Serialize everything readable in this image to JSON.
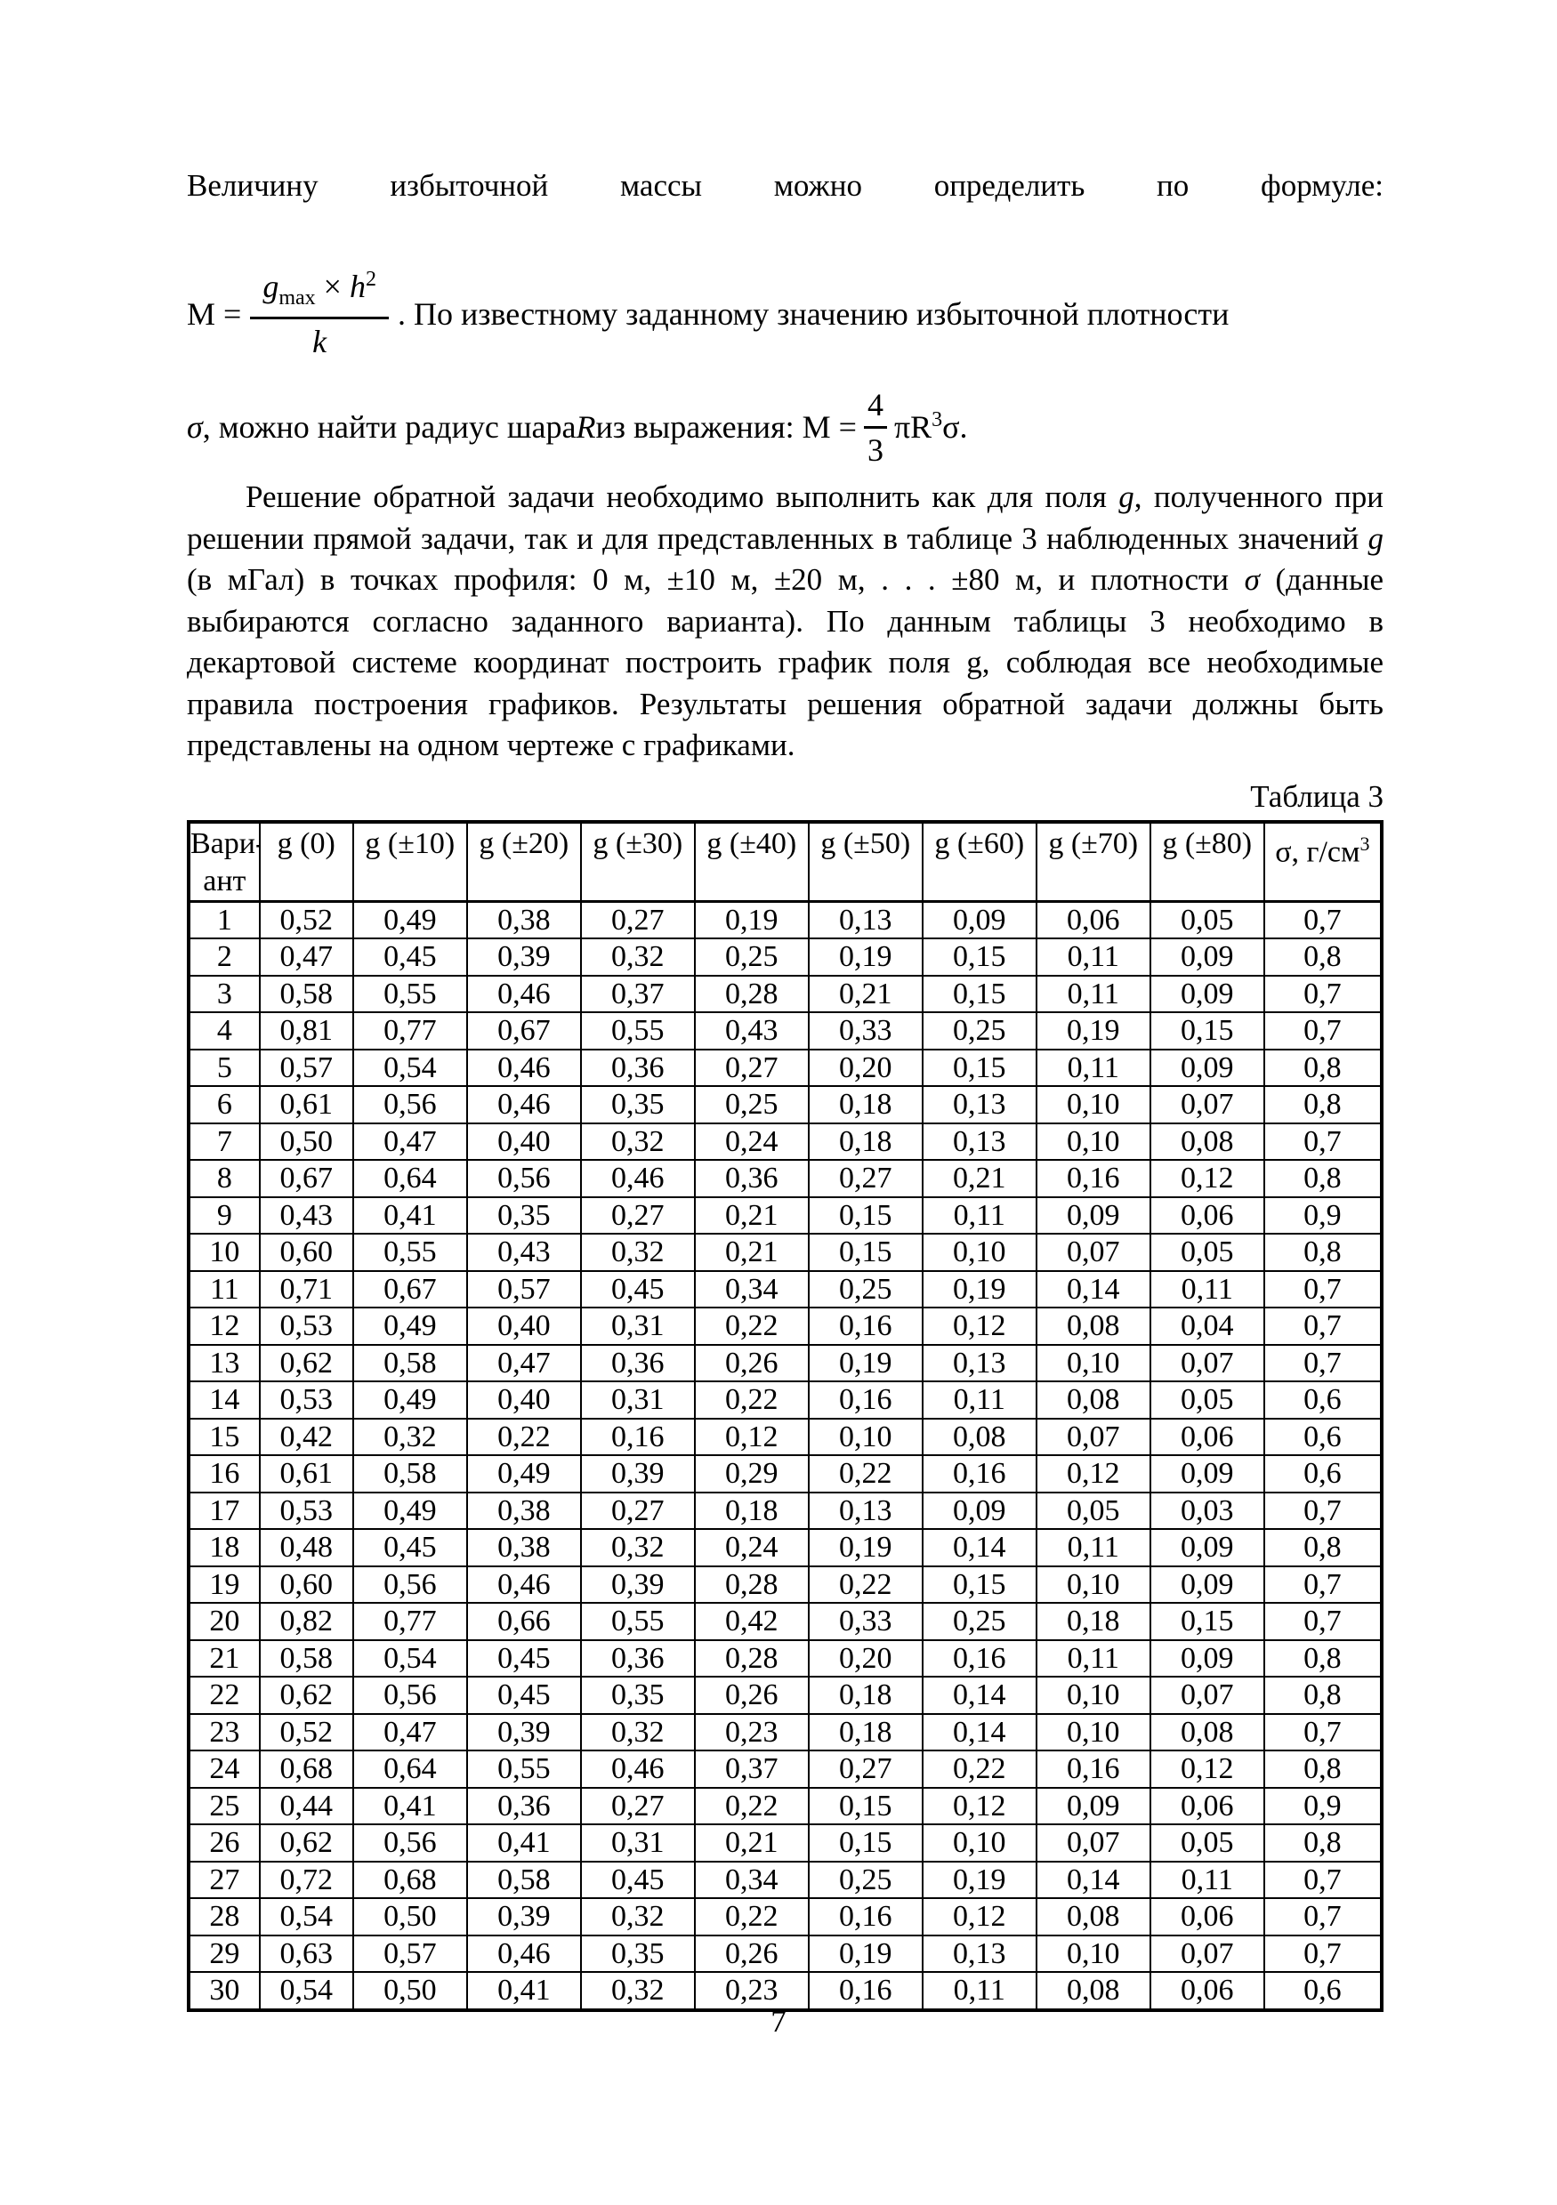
{
  "page": {
    "number": "7"
  },
  "intro": {
    "line1": "Величину избыточной массы можно определить по формуле:",
    "formula_mass": {
      "lhs": "М =",
      "num_g": "g",
      "num_sub": "max",
      "num_times": " × ",
      "num_h": "h",
      "num_exp": "2",
      "den": "k",
      "tail": ". По известному заданному значению избыточной плотности"
    },
    "formula_radius": {
      "sigma": "σ",
      "mid1": ", можно найти радиус шара ",
      "r": "R",
      "mid2": " из выражения: М = ",
      "frac_num": "4",
      "frac_den": "3",
      "pi_r": "πR",
      "exp": "3",
      "tail": "σ."
    }
  },
  "task": {
    "segments": [
      {
        "t": "Решение обратной задачи необходимо выполнить как для поля "
      },
      {
        "t": "g",
        "i": true
      },
      {
        "t": ", полученного при решении прямой задачи, так и для представленных в таблице 3 наблюденных значений "
      },
      {
        "t": "g",
        "i": true
      },
      {
        "t": "  (в мГал) в точках профиля: 0 м, ±10 м, ±20 м, . . . ±80 м,  и плотности "
      },
      {
        "t": "σ",
        "i": true
      },
      {
        "t": " (данные выбираются согласно заданного варианта). По данным таблицы 3 необходимо в декартовой системе координат построить график поля g, соблюдая все необходимые правила построения графиков. Результаты решения обратной задачи должны быть представлены на одном чертеже с графиками."
      }
    ]
  },
  "table": {
    "caption": "Таблица 3",
    "col_headers": [
      {
        "text": "Вари-",
        "text2": "ант"
      },
      {
        "text": "g (0)"
      },
      {
        "text": "g (±10)"
      },
      {
        "text": "g (±20)"
      },
      {
        "text": "g (±30)"
      },
      {
        "text": "g (±40)"
      },
      {
        "text": "g (±50)"
      },
      {
        "text": "g (±60)"
      },
      {
        "text": "g (±70)"
      },
      {
        "text": "g (±80)"
      },
      {
        "text": "σ, г/см",
        "sup": "3"
      }
    ],
    "rows": [
      [
        "1",
        "0,52",
        "0,49",
        "0,38",
        "0,27",
        "0,19",
        "0,13",
        "0,09",
        "0,06",
        "0,05",
        "0,7"
      ],
      [
        "2",
        "0,47",
        "0,45",
        "0,39",
        "0,32",
        "0,25",
        "0,19",
        "0,15",
        "0,11",
        "0,09",
        "0,8"
      ],
      [
        "3",
        "0,58",
        "0,55",
        "0,46",
        "0,37",
        "0,28",
        "0,21",
        "0,15",
        "0,11",
        "0,09",
        "0,7"
      ],
      [
        "4",
        "0,81",
        "0,77",
        "0,67",
        "0,55",
        "0,43",
        "0,33",
        "0,25",
        "0,19",
        "0,15",
        "0,7"
      ],
      [
        "5",
        "0,57",
        "0,54",
        "0,46",
        "0,36",
        "0,27",
        "0,20",
        "0,15",
        "0,11",
        "0,09",
        "0,8"
      ],
      [
        "6",
        "0,61",
        "0,56",
        "0,46",
        "0,35",
        "0,25",
        "0,18",
        "0,13",
        "0,10",
        "0,07",
        "0,8"
      ],
      [
        "7",
        "0,50",
        "0,47",
        "0,40",
        "0,32",
        "0,24",
        "0,18",
        "0,13",
        "0,10",
        "0,08",
        "0,7"
      ],
      [
        "8",
        "0,67",
        "0,64",
        "0,56",
        "0,46",
        "0,36",
        "0,27",
        "0,21",
        "0,16",
        "0,12",
        "0,8"
      ],
      [
        "9",
        "0,43",
        "0,41",
        "0,35",
        "0,27",
        "0,21",
        "0,15",
        "0,11",
        "0,09",
        "0,06",
        "0,9"
      ],
      [
        "10",
        "0,60",
        "0,55",
        "0,43",
        "0,32",
        "0,21",
        "0,15",
        "0,10",
        "0,07",
        "0,05",
        "0,8"
      ],
      [
        "11",
        "0,71",
        "0,67",
        "0,57",
        "0,45",
        "0,34",
        "0,25",
        "0,19",
        "0,14",
        "0,11",
        "0,7"
      ],
      [
        "12",
        "0,53",
        "0,49",
        "0,40",
        "0,31",
        "0,22",
        "0,16",
        "0,12",
        "0,08",
        "0,04",
        "0,7"
      ],
      [
        "13",
        "0,62",
        "0,58",
        "0,47",
        "0,36",
        "0,26",
        "0,19",
        "0,13",
        "0,10",
        "0,07",
        "0,7"
      ],
      [
        "14",
        "0,53",
        "0,49",
        "0,40",
        "0,31",
        "0,22",
        "0,16",
        "0,11",
        "0,08",
        "0,05",
        "0,6"
      ],
      [
        "15",
        "0,42",
        "0,32",
        "0,22",
        "0,16",
        "0,12",
        "0,10",
        "0,08",
        "0,07",
        "0,06",
        "0,6"
      ],
      [
        "16",
        "0,61",
        "0,58",
        "0,49",
        "0,39",
        "0,29",
        "0,22",
        "0,16",
        "0,12",
        "0,09",
        "0,6"
      ],
      [
        "17",
        "0,53",
        "0,49",
        "0,38",
        "0,27",
        "0,18",
        "0,13",
        "0,09",
        "0,05",
        "0,03",
        "0,7"
      ],
      [
        "18",
        "0,48",
        "0,45",
        "0,38",
        "0,32",
        "0,24",
        "0,19",
        "0,14",
        "0,11",
        "0,09",
        "0,8"
      ],
      [
        "19",
        "0,60",
        "0,56",
        "0,46",
        "0,39",
        "0,28",
        "0,22",
        "0,15",
        "0,10",
        "0,09",
        "0,7"
      ],
      [
        "20",
        "0,82",
        "0,77",
        "0,66",
        "0,55",
        "0,42",
        "0,33",
        "0,25",
        "0,18",
        "0,15",
        "0,7"
      ],
      [
        "21",
        "0,58",
        "0,54",
        "0,45",
        "0,36",
        "0,28",
        "0,20",
        "0,16",
        "0,11",
        "0,09",
        "0,8"
      ],
      [
        "22",
        "0,62",
        "0,56",
        "0,45",
        "0,35",
        "0,26",
        "0,18",
        "0,14",
        "0,10",
        "0,07",
        "0,8"
      ],
      [
        "23",
        "0,52",
        "0,47",
        "0,39",
        "0,32",
        "0,23",
        "0,18",
        "0,14",
        "0,10",
        "0,08",
        "0,7"
      ],
      [
        "24",
        "0,68",
        "0,64",
        "0,55",
        "0,46",
        "0,37",
        "0,27",
        "0,22",
        "0,16",
        "0,12",
        "0,8"
      ],
      [
        "25",
        "0,44",
        "0,41",
        "0,36",
        "0,27",
        "0,22",
        "0,15",
        "0,12",
        "0,09",
        "0,06",
        "0,9"
      ],
      [
        "26",
        "0,62",
        "0,56",
        "0,41",
        "0,31",
        "0,21",
        "0,15",
        "0,10",
        "0,07",
        "0,05",
        "0,8"
      ],
      [
        "27",
        "0,72",
        "0,68",
        "0,58",
        "0,45",
        "0,34",
        "0,25",
        "0,19",
        "0,14",
        "0,11",
        "0,7"
      ],
      [
        "28",
        "0,54",
        "0,50",
        "0,39",
        "0,32",
        "0,22",
        "0,16",
        "0,12",
        "0,08",
        "0,06",
        "0,7"
      ],
      [
        "29",
        "0,63",
        "0,57",
        "0,46",
        "0,35",
        "0,26",
        "0,19",
        "0,13",
        "0,10",
        "0,07",
        "0,7"
      ],
      [
        "30",
        "0,54",
        "0,50",
        "0,41",
        "0,32",
        "0,23",
        "0,16",
        "0,11",
        "0,08",
        "0,06",
        "0,6"
      ]
    ]
  }
}
